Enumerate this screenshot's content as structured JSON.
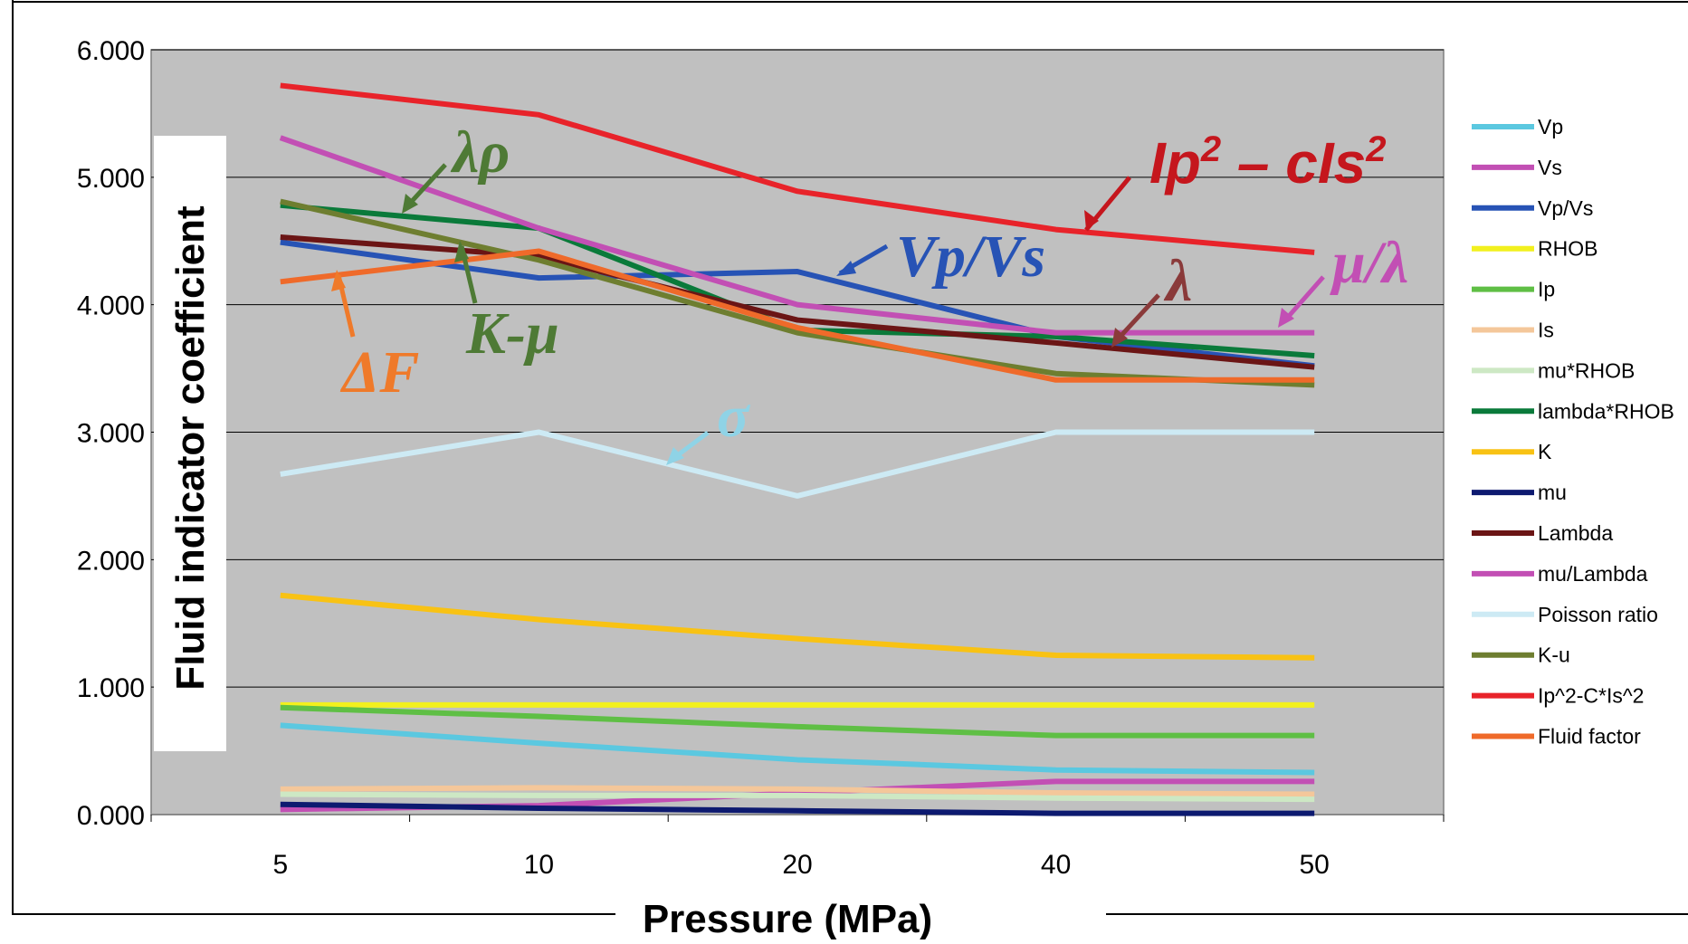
{
  "chart_data": {
    "type": "line",
    "xlabel": "Pressure (MPa)",
    "ylabel": "Fluid indicator coefficient",
    "categories": [
      "5",
      "10",
      "20",
      "40",
      "50"
    ],
    "ylim": [
      0,
      6
    ],
    "y_ticks": [
      "0.000",
      "1.000",
      "2.000",
      "3.000",
      "4.000",
      "5.000",
      "6.000"
    ],
    "grid": "horizontal",
    "plot_background": "#c0c0c0",
    "legend_position": "right",
    "series": [
      {
        "name": "Vp",
        "color": "#5bc8e0",
        "values": [
          0.7,
          0.56,
          0.43,
          0.35,
          0.33
        ]
      },
      {
        "name": "Vs",
        "color": "#c24fb4",
        "values": [
          0.04,
          0.07,
          0.17,
          0.26,
          0.26
        ]
      },
      {
        "name": "Vp/Vs",
        "color": "#2753b5",
        "values": [
          4.49,
          4.21,
          4.26,
          3.75,
          3.52
        ]
      },
      {
        "name": "RHOB",
        "color": "#f2f01e",
        "values": [
          0.86,
          0.86,
          0.86,
          0.86,
          0.86
        ]
      },
      {
        "name": "Ip",
        "color": "#5fbf45",
        "values": [
          0.84,
          0.77,
          0.69,
          0.62,
          0.62
        ]
      },
      {
        "name": "Is",
        "color": "#f4c79a",
        "values": [
          0.2,
          0.21,
          0.2,
          0.17,
          0.16
        ]
      },
      {
        "name": "mu*RHOB",
        "color": "#cde8c4",
        "values": [
          0.16,
          0.15,
          0.15,
          0.13,
          0.12
        ]
      },
      {
        "name": "lambda*RHOB",
        "color": "#0a7a3a",
        "values": [
          4.78,
          4.6,
          3.8,
          3.75,
          3.6
        ]
      },
      {
        "name": "K",
        "color": "#f8c214",
        "values": [
          1.72,
          1.53,
          1.38,
          1.25,
          1.23
        ]
      },
      {
        "name": "mu",
        "color": "#0d1a70",
        "values": [
          0.08,
          0.05,
          0.03,
          0.01,
          0.01
        ]
      },
      {
        "name": "Lambda",
        "color": "#6b1515",
        "values": [
          4.53,
          4.38,
          3.88,
          3.7,
          3.51
        ]
      },
      {
        "name": "mu/Lambda",
        "color": "#c24fb4",
        "values": [
          5.31,
          4.6,
          4.0,
          3.78,
          3.78
        ]
      },
      {
        "name": "Poisson ratio",
        "color": "#cdeaf4",
        "values": [
          2.67,
          3.0,
          2.5,
          3.0,
          3.0
        ]
      },
      {
        "name": "K-u",
        "color": "#6e7e30",
        "values": [
          4.81,
          4.35,
          3.78,
          3.46,
          3.37
        ]
      },
      {
        "name": "Ip^2-C*Is^2",
        "color": "#e8232a",
        "values": [
          5.72,
          5.49,
          4.89,
          4.59,
          4.41
        ]
      },
      {
        "name": "Fluid factor",
        "color": "#ef6a2a",
        "values": [
          4.18,
          4.42,
          3.82,
          3.41,
          3.41
        ]
      }
    ],
    "annotations": [
      {
        "text": "Ip² – cIs²",
        "color": "#c5161d"
      },
      {
        "text": "Vp/Vs",
        "color": "#2753b5"
      },
      {
        "text": "μ/λ",
        "color": "#c24fb4"
      },
      {
        "text": "λρ",
        "color": "#4e7a35"
      },
      {
        "text": "λ",
        "color": "#8a3a3a"
      },
      {
        "text": "K-μ",
        "color": "#4e7a35"
      },
      {
        "text": "ΔF",
        "color": "#ef7a2a"
      },
      {
        "text": "σ",
        "color": "#8fd3e6"
      }
    ]
  }
}
